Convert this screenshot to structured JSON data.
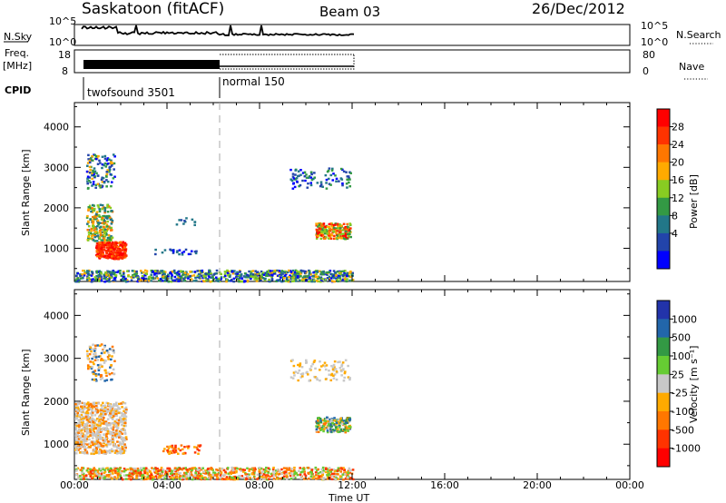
{
  "header": {
    "station": "Saskatoon (fitACF)",
    "beam": "Beam 03",
    "date": "26/Dec/2012"
  },
  "panels": {
    "nsky": {
      "left_label": "N.Sky",
      "left_ticks": [
        "10^5",
        "10^0"
      ],
      "right_label": "N.Search",
      "right_ticks": [
        "10^5",
        "10^0"
      ]
    },
    "freq": {
      "left_label_1": "Freq.",
      "left_label_2": "[MHz]",
      "left_ticks": [
        "18",
        "8"
      ],
      "right_label": "Nave",
      "right_ticks": [
        "80",
        "0"
      ]
    },
    "cpid": {
      "label": "CPID",
      "modes": [
        "twofsound 3501",
        "normal 150"
      ]
    }
  },
  "chart_data": [
    {
      "type": "heatmap",
      "title": "",
      "xlabel": "Time UT",
      "ylabel": "Slant Range [km]",
      "xlim": [
        "00:00",
        "24:00"
      ],
      "ylim": [
        180,
        4600
      ],
      "x_ticks": [
        "00:00",
        "04:00",
        "08:00",
        "12:00",
        "16:00",
        "20:00",
        "00:00"
      ],
      "y_ticks": [
        1000,
        2000,
        3000,
        4000
      ],
      "colorbar": {
        "label": "Power [dB]",
        "ticks": [
          "28",
          "24",
          "20",
          "16",
          "12",
          "8",
          "4"
        ],
        "colors": [
          "#ff0000",
          "#ff3300",
          "#ff7700",
          "#ffaa00",
          "#88cc22",
          "#339944",
          "#227788",
          "#2244aa",
          "#0000ff"
        ]
      },
      "data_extent_ut_hours": [
        0,
        12
      ],
      "mode_change_ut_hours": 6,
      "features": [
        {
          "t": [
            1.0,
            2.2
          ],
          "r": [
            800,
            1150
          ],
          "value": "24-30 dB"
        },
        {
          "t": [
            10.4,
            11.9
          ],
          "r": [
            1200,
            1600
          ],
          "value": "16-30 dB"
        },
        {
          "t": [
            9.3,
            11.9
          ],
          "r": [
            2500,
            3000
          ],
          "value": "4-8 dB"
        },
        {
          "t": [
            0.0,
            12.0
          ],
          "r": [
            200,
            500
          ],
          "value": "4-20 dB"
        }
      ]
    },
    {
      "type": "heatmap",
      "title": "",
      "xlabel": "Time UT",
      "ylabel": "Slant Range [km]",
      "xlim": [
        "00:00",
        "24:00"
      ],
      "ylim": [
        180,
        4600
      ],
      "x_ticks": [
        "00:00",
        "04:00",
        "08:00",
        "12:00",
        "16:00",
        "20:00",
        "00:00"
      ],
      "y_ticks": [
        1000,
        2000,
        3000,
        4000
      ],
      "colorbar": {
        "label": "Velocity [m s⁻¹]",
        "ticks": [
          "1000",
          "500",
          "100",
          "25",
          "-25",
          "-100",
          "-500",
          "-1000"
        ],
        "colors": [
          "#2233aa",
          "#2266aa",
          "#339944",
          "#66cc33",
          "#c8c8c8",
          "#ffaa00",
          "#ff7700",
          "#ff3300",
          "#ff0000"
        ]
      },
      "data_extent_ut_hours": [
        0,
        12
      ],
      "mode_change_ut_hours": 6,
      "features": [
        {
          "t": [
            0.0,
            2.0
          ],
          "r": [
            800,
            2000
          ],
          "value": "-25 to 25 m/s"
        },
        {
          "t": [
            10.4,
            11.9
          ],
          "r": [
            1300,
            1600
          ],
          "value": "-500 to 500 m/s"
        },
        {
          "t": [
            4.0,
            5.5
          ],
          "r": [
            800,
            1000
          ],
          "value": "-100 m/s"
        },
        {
          "t": [
            0.0,
            12.0
          ],
          "r": [
            200,
            500
          ],
          "value": "-100 to -25 m/s"
        }
      ]
    }
  ]
}
